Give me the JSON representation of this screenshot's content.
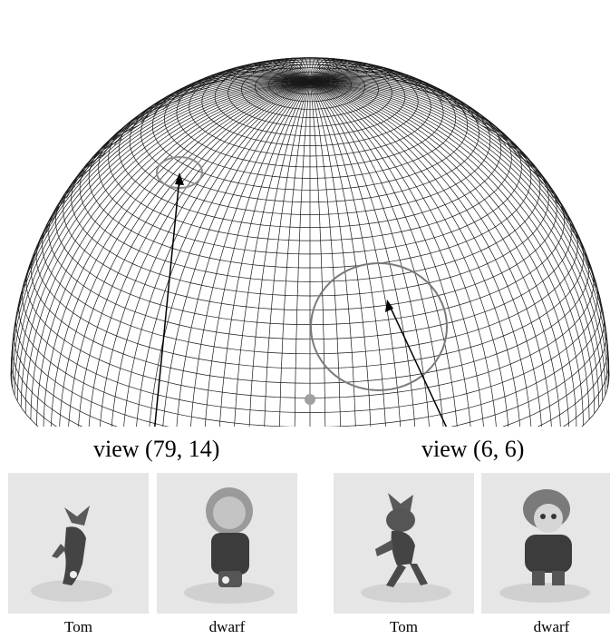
{
  "figure": {
    "views": [
      {
        "label": "view (79, 14)",
        "thumbnails": [
          {
            "caption": "Tom"
          },
          {
            "caption": "dwarf"
          }
        ]
      },
      {
        "label": "view (6, 6)",
        "thumbnails": [
          {
            "caption": "Tom"
          },
          {
            "caption": "dwarf"
          }
        ]
      }
    ]
  },
  "colors": {
    "mesh": "#1a1a1a",
    "thumbnail_bg": "#e6e6e6",
    "figure_dark": "#3c3c3c",
    "marker": "#8c8c8c"
  }
}
